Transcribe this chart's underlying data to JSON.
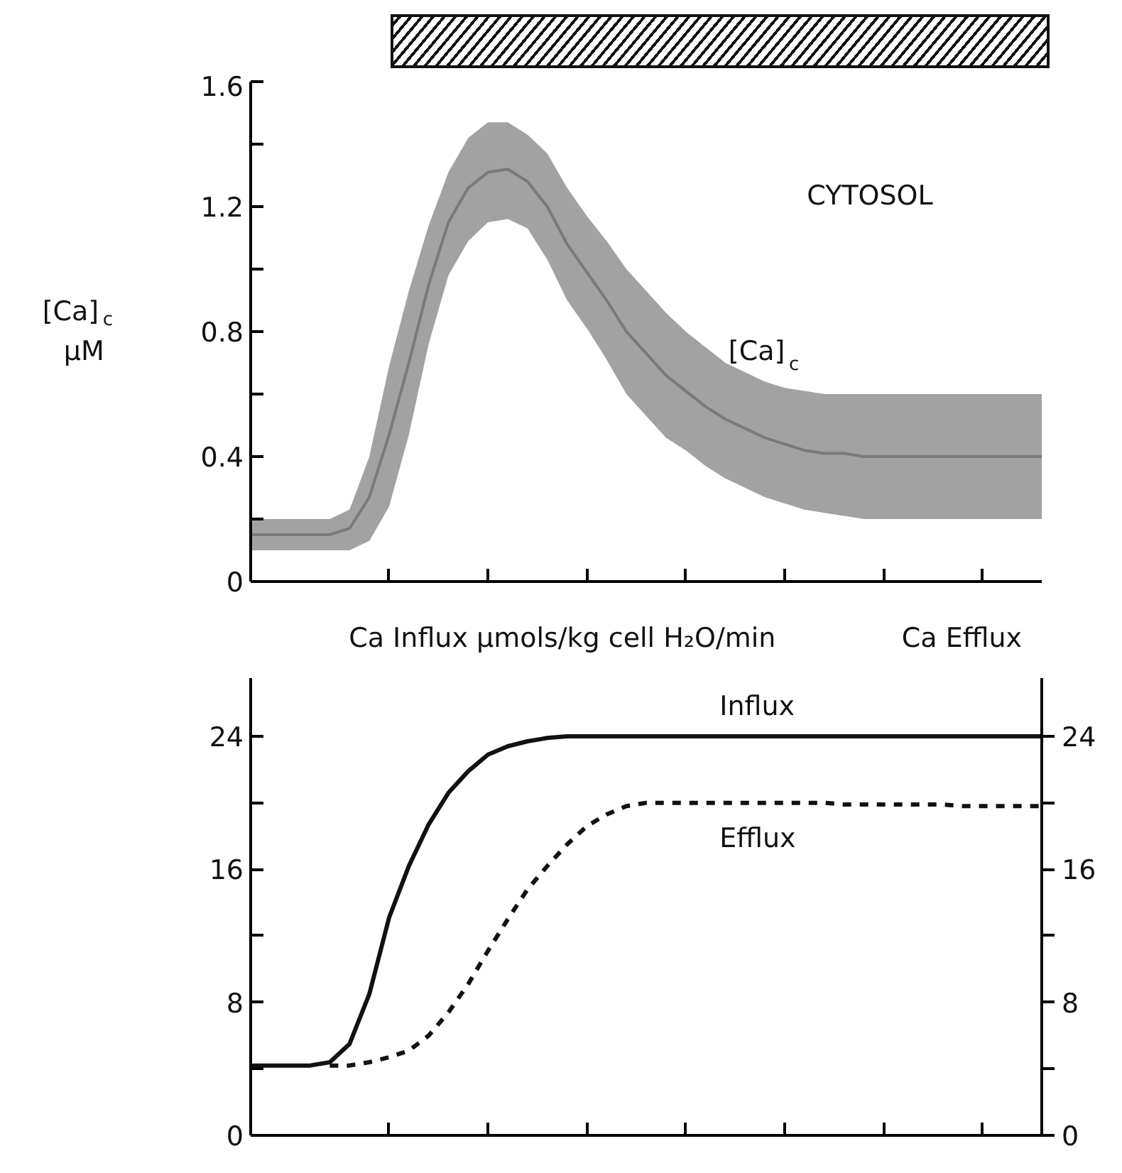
{
  "chart_data": [
    {
      "type": "line",
      "ylabel": "[Ca]$_{c}$ μM",
      "annotations": [
        "CYTOSOL"
      ],
      "categories": [
        null,
        null,
        null,
        null,
        null,
        null,
        null,
        null,
        null,
        null,
        null,
        null,
        null,
        null,
        null,
        null,
        null,
        null,
        null,
        null,
        null,
        null,
        null,
        null,
        null,
        null,
        null,
        null,
        null,
        null,
        null,
        null,
        null,
        null,
        null,
        null,
        null,
        null,
        null,
        null,
        null
      ],
      "series": [
        {
          "name": "[Ca]$_{c}$",
          "color": "#7a7a7a",
          "values": [
            0.15,
            0.15,
            0.15,
            0.15,
            0.15,
            0.17,
            0.27,
            0.47,
            0.7,
            0.95,
            1.15,
            1.26,
            1.31,
            1.32,
            1.28,
            1.2,
            1.08,
            0.99,
            0.9,
            0.8,
            0.73,
            0.66,
            0.61,
            0.56,
            0.52,
            0.49,
            0.46,
            0.44,
            0.42,
            0.41,
            0.41,
            0.4,
            0.4,
            0.4,
            0.4,
            0.4,
            0.4,
            0.4,
            0.4,
            0.4,
            0.4
          ],
          "upper": [
            0.2,
            0.2,
            0.2,
            0.2,
            0.2,
            0.23,
            0.4,
            0.69,
            0.93,
            1.14,
            1.31,
            1.42,
            1.47,
            1.47,
            1.43,
            1.37,
            1.26,
            1.17,
            1.09,
            1.0,
            0.93,
            0.86,
            0.8,
            0.75,
            0.7,
            0.67,
            0.64,
            0.62,
            0.61,
            0.6,
            0.6,
            0.6,
            0.6,
            0.6,
            0.6,
            0.6,
            0.6,
            0.6,
            0.6,
            0.6,
            0.6
          ],
          "lower": [
            0.1,
            0.1,
            0.1,
            0.1,
            0.1,
            0.1,
            0.13,
            0.24,
            0.47,
            0.76,
            0.98,
            1.09,
            1.15,
            1.16,
            1.13,
            1.03,
            0.9,
            0.81,
            0.71,
            0.6,
            0.53,
            0.46,
            0.42,
            0.37,
            0.33,
            0.3,
            0.27,
            0.25,
            0.23,
            0.22,
            0.21,
            0.2,
            0.2,
            0.2,
            0.2,
            0.2,
            0.2,
            0.2,
            0.2,
            0.2,
            0.2
          ]
        }
      ],
      "ylim": [
        0,
        1.6
      ],
      "yticks": [
        0,
        {
          "value": 0.2,
          "label": null
        },
        0.4,
        {
          "value": 0.6,
          "label": null
        },
        0.8,
        {
          "value": 1.0,
          "label": null
        },
        1.2,
        {
          "value": 1.4,
          "label": null
        },
        1.6
      ],
      "grid": false
    },
    {
      "type": "line",
      "ylabel": "Ca Influx μmols/kg cell H₂O/min",
      "y2label": "Ca Efflux",
      "categories": [
        null,
        null,
        null,
        null,
        null,
        null,
        null,
        null,
        null,
        null,
        null,
        null,
        null,
        null,
        null,
        null,
        null,
        null,
        null,
        null,
        null,
        null,
        null,
        null,
        null,
        null,
        null,
        null,
        null,
        null,
        null,
        null,
        null,
        null,
        null,
        null,
        null,
        null,
        null,
        null,
        null
      ],
      "series": [
        {
          "name": "Influx",
          "color": "#111111",
          "line_style": "solid",
          "values": [
            4.2,
            4.2,
            4.2,
            4.2,
            4.4,
            5.5,
            8.5,
            13.1,
            16.2,
            18.7,
            20.6,
            21.9,
            22.9,
            23.4,
            23.7,
            23.9,
            24.0,
            24.0,
            24.0,
            24.0,
            24.0,
            24.0,
            24.0,
            24.0,
            24.0,
            24.0,
            24.0,
            24.0,
            24.0,
            24.0,
            24.0,
            24.0,
            24.0,
            24.0,
            24.0,
            24.0,
            24.0,
            24.0,
            24.0,
            24.0,
            24.0
          ]
        },
        {
          "name": "Efflux",
          "color": "#111111",
          "line_style": "dashed",
          "axis": "y2",
          "values": [
            null,
            null,
            null,
            null,
            4.2,
            4.2,
            4.4,
            4.7,
            5.1,
            6.0,
            7.4,
            9.1,
            11.1,
            13.0,
            14.8,
            16.2,
            17.5,
            18.6,
            19.3,
            19.8,
            20.0,
            20.0,
            20.0,
            20.0,
            20.0,
            20.0,
            20.0,
            20.0,
            20.0,
            20.0,
            19.9,
            19.9,
            19.9,
            19.9,
            19.9,
            19.9,
            19.8,
            19.8,
            19.8,
            19.8,
            19.8
          ]
        }
      ],
      "ylim": [
        0,
        27.5
      ],
      "yticks": [
        0,
        {
          "value": 4,
          "label": null
        },
        8,
        {
          "value": 12,
          "label": null
        },
        16,
        {
          "value": 20,
          "label": null
        },
        24
      ],
      "y2lim": [
        0,
        27.5
      ],
      "y2ticks": [
        0,
        {
          "value": 4,
          "label": null
        },
        8,
        {
          "value": 12,
          "label": null
        },
        16,
        {
          "value": 20,
          "label": null
        },
        24
      ],
      "grid": false
    }
  ]
}
